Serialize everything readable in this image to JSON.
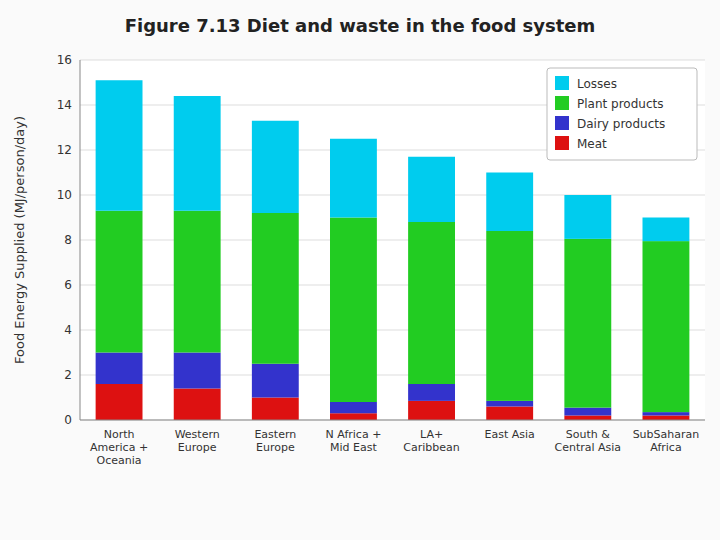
{
  "chart_data": {
    "type": "bar",
    "stacked": true,
    "title": "Figure 7.13 Diet and waste in the food system",
    "y_label": "Food Energy Supplied (MJ/person/day)",
    "categories": [
      "North\nAmerica +\nOceania",
      "Western\nEurope",
      "Eastern\nEurope",
      "N Africa +\nMid East",
      "LA+\nCaribbean",
      "East Asia",
      "South &\nCentral Asia",
      "SubSaharan\nAfrica"
    ],
    "series": [
      {
        "name": "Meat",
        "color": "#dd1111",
        "values": [
          1.6,
          1.4,
          1.0,
          0.3,
          0.85,
          0.6,
          0.2,
          0.2
        ]
      },
      {
        "name": "Dairy products",
        "color": "#3333cc",
        "values": [
          1.4,
          1.6,
          1.5,
          0.5,
          0.75,
          0.25,
          0.35,
          0.15
        ]
      },
      {
        "name": "Plant products",
        "color": "#22cc22",
        "values": [
          6.3,
          6.3,
          6.7,
          8.2,
          7.2,
          7.55,
          7.5,
          7.6
        ]
      },
      {
        "name": "Losses",
        "color": "#00ccee",
        "values": [
          5.8,
          5.1,
          4.1,
          3.5,
          2.9,
          2.6,
          1.95,
          1.05
        ]
      }
    ],
    "ylim": [
      0,
      16
    ],
    "yticks": [
      0,
      2,
      4,
      6,
      8,
      10,
      12,
      14,
      16
    ],
    "grid": true,
    "legend": "upper right"
  }
}
